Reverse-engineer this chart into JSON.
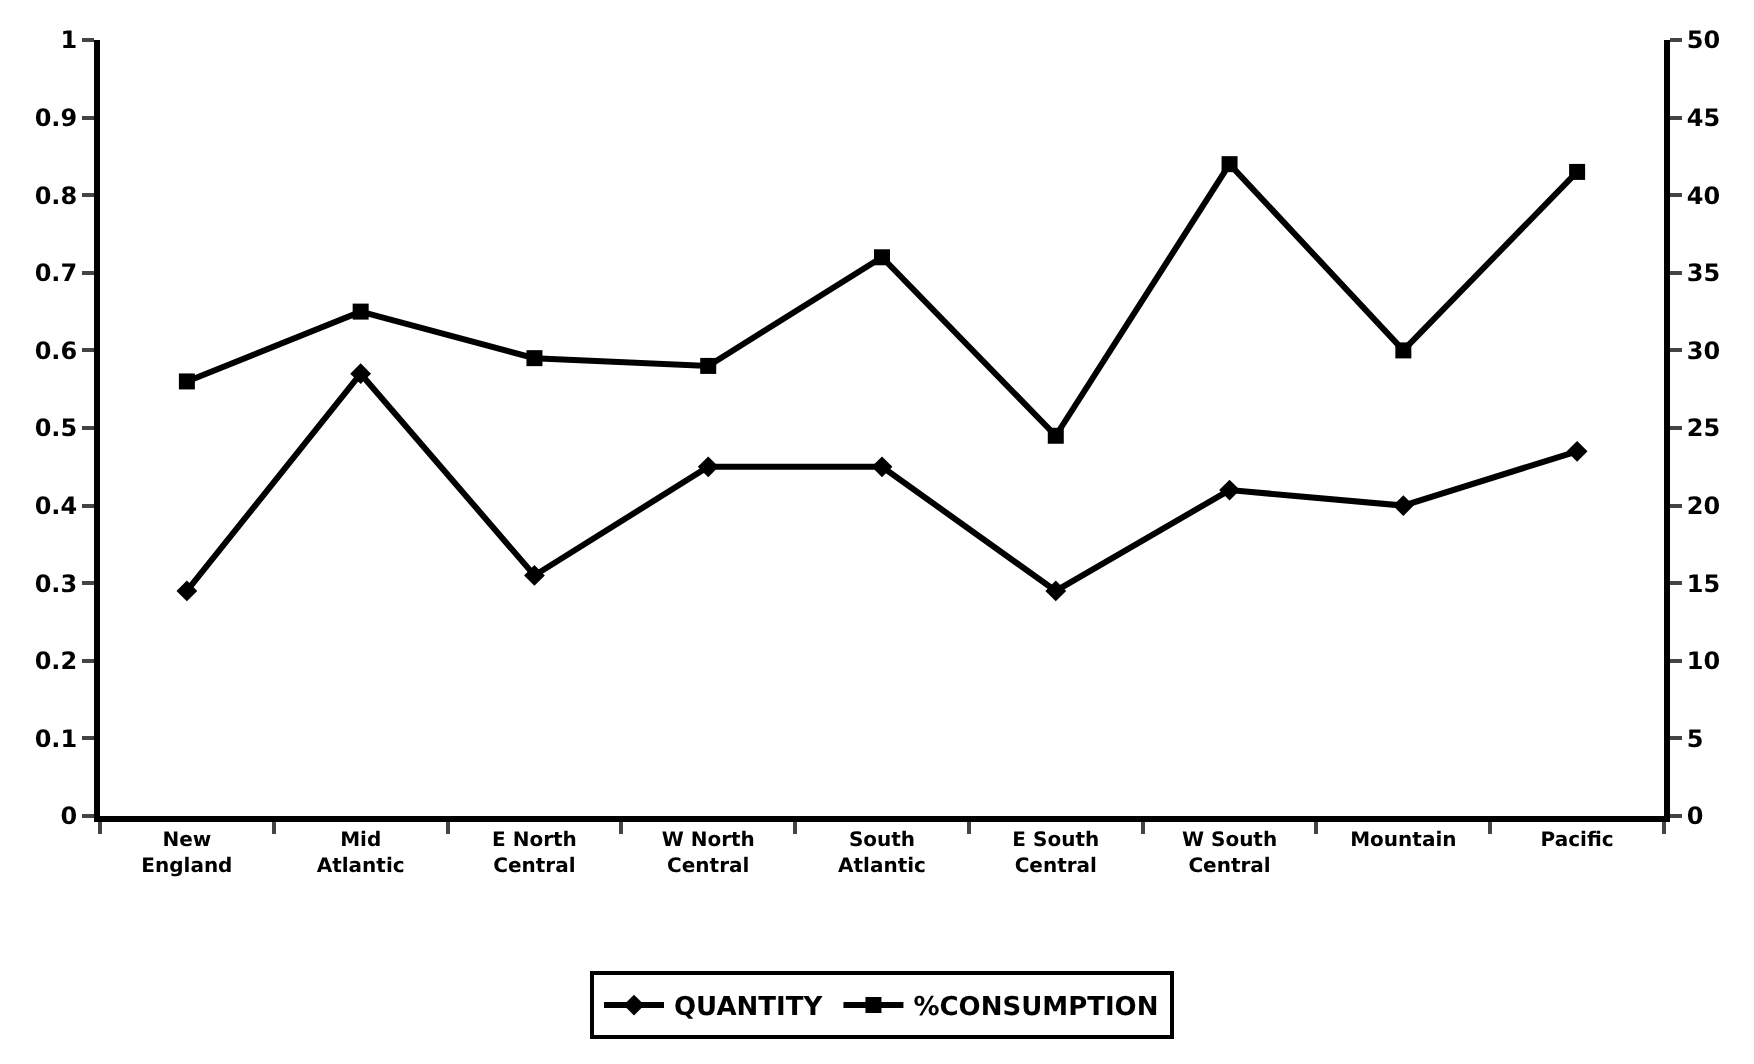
{
  "chart_data": {
    "type": "line",
    "categories": [
      "New\nEngland",
      "Mid\nAtlantic",
      "E North\nCentral",
      "W North\nCentral",
      "South\nAtlantic",
      "E South\nCentral",
      "W South\nCentral",
      "Mountain",
      "Pacific"
    ],
    "series": [
      {
        "name": "QUANTITY",
        "color": "#000000",
        "marker": "diamond",
        "values": [
          0.29,
          0.57,
          0.31,
          0.45,
          0.45,
          0.29,
          0.42,
          0.4,
          0.47
        ]
      },
      {
        "name": "%CONSUMPTION",
        "color": "#000000",
        "marker": "square",
        "axis": "y2",
        "values": [
          28,
          32.5,
          29.5,
          29,
          36,
          24.5,
          42,
          30,
          41.5
        ]
      }
    ],
    "ylim": [
      0,
      1
    ],
    "yticks": [
      0,
      0.1,
      0.2,
      0.3,
      0.4,
      0.5,
      0.6,
      0.7,
      0.8,
      0.9,
      1
    ],
    "y2lim": [
      0,
      50
    ],
    "y2ticks": [
      0,
      5,
      10,
      15,
      20,
      25,
      30,
      35,
      40,
      45,
      50
    ],
    "grid": false,
    "legend": "bottom",
    "line_style": "solid"
  }
}
